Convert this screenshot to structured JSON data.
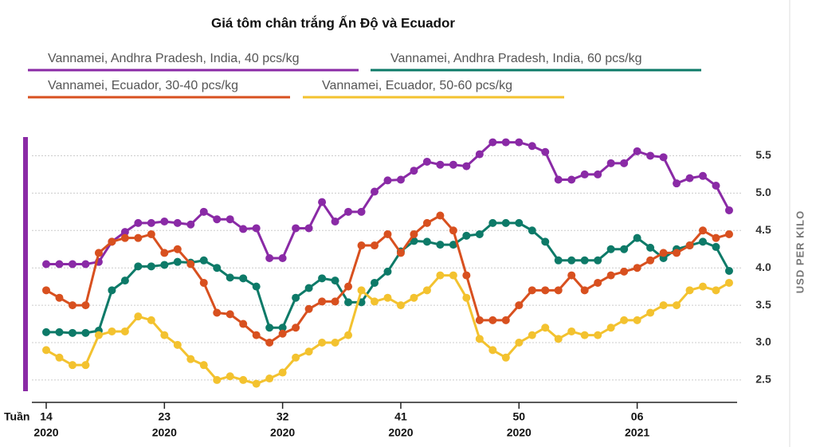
{
  "chart_data": {
    "type": "line",
    "title": "Giá tôm chân trắng Ấn Độ và Ecuador",
    "xlabel": "Tuần",
    "ylabel": "USD PER KILO",
    "categories": [
      "14",
      null,
      null,
      null,
      null,
      null,
      null,
      null,
      null,
      "23",
      null,
      null,
      null,
      null,
      null,
      null,
      null,
      null,
      "32",
      null,
      null,
      null,
      null,
      null,
      null,
      null,
      null,
      "41",
      null,
      null,
      null,
      null,
      null,
      null,
      null,
      null,
      "50",
      null,
      null,
      null,
      null,
      null,
      null,
      null,
      null,
      "06",
      null,
      null,
      null,
      null,
      null,
      null,
      null
    ],
    "category_years": [
      "2020",
      null,
      null,
      null,
      null,
      null,
      null,
      null,
      null,
      "2020",
      null,
      null,
      null,
      null,
      null,
      null,
      null,
      null,
      "2020",
      null,
      null,
      null,
      null,
      null,
      null,
      null,
      null,
      "2020",
      null,
      null,
      null,
      null,
      null,
      null,
      null,
      null,
      "2020",
      null,
      null,
      null,
      null,
      null,
      null,
      null,
      null,
      "2021",
      null,
      null,
      null,
      null,
      null,
      null,
      null
    ],
    "series": [
      {
        "name": "Vannamei, Andhra Pradesh, India, 40 pcs/kg",
        "color": "#8a2aa6",
        "values": [
          4.05,
          4.05,
          4.05,
          4.05,
          4.08,
          4.35,
          4.48,
          4.6,
          4.6,
          4.62,
          4.6,
          4.58,
          4.75,
          4.65,
          4.65,
          4.52,
          4.53,
          4.13,
          4.13,
          4.53,
          4.53,
          4.88,
          4.62,
          4.75,
          4.75,
          5.02,
          5.17,
          5.18,
          5.3,
          5.42,
          5.38,
          5.38,
          5.36,
          5.52,
          5.68,
          5.68,
          5.68,
          5.63,
          5.55,
          5.18,
          5.18,
          5.25,
          5.25,
          5.4,
          5.4,
          5.56,
          5.5,
          5.48,
          5.13,
          5.2,
          5.23,
          5.1,
          4.77
        ]
      },
      {
        "name": "Vannamei, Andhra Pradesh, India, 60 pcs/kg",
        "color": "#0d7a68",
        "values": [
          3.14,
          3.14,
          3.13,
          3.13,
          3.16,
          3.7,
          3.83,
          4.02,
          4.02,
          4.04,
          4.08,
          4.07,
          4.1,
          4.0,
          3.87,
          3.86,
          3.75,
          3.2,
          3.2,
          3.6,
          3.73,
          3.86,
          3.83,
          3.54,
          3.54,
          3.8,
          3.95,
          4.22,
          4.36,
          4.35,
          4.31,
          4.31,
          4.43,
          4.45,
          4.6,
          4.6,
          4.6,
          4.5,
          4.35,
          4.1,
          4.1,
          4.1,
          4.1,
          4.25,
          4.25,
          4.4,
          4.27,
          4.13,
          4.25,
          4.3,
          4.35,
          4.28,
          3.96
        ]
      },
      {
        "name": "Vannamei, Ecuador, 30-40 pcs/kg",
        "color": "#d8501f",
        "values": [
          3.7,
          3.6,
          3.5,
          3.5,
          4.2,
          4.35,
          4.4,
          4.4,
          4.45,
          4.2,
          4.25,
          4.05,
          3.8,
          3.4,
          3.38,
          3.25,
          3.1,
          3.0,
          3.12,
          3.2,
          3.45,
          3.55,
          3.55,
          3.75,
          4.3,
          4.3,
          4.45,
          4.2,
          4.45,
          4.6,
          4.7,
          4.5,
          3.9,
          3.3,
          3.3,
          3.3,
          3.5,
          3.7,
          3.7,
          3.7,
          3.9,
          3.7,
          3.8,
          3.9,
          3.95,
          4.0,
          4.1,
          4.2,
          4.2,
          4.3,
          4.5,
          4.4,
          4.45
        ]
      },
      {
        "name": "Vannamei, Ecuador, 50-60 pcs/kg",
        "color": "#f3c22f",
        "values": [
          2.9,
          2.8,
          2.7,
          2.7,
          3.1,
          3.15,
          3.15,
          3.35,
          3.3,
          3.1,
          2.97,
          2.78,
          2.7,
          2.5,
          2.55,
          2.5,
          2.45,
          2.52,
          2.6,
          2.8,
          2.88,
          3.0,
          3.0,
          3.1,
          3.7,
          3.55,
          3.6,
          3.5,
          3.6,
          3.7,
          3.9,
          3.9,
          3.6,
          3.05,
          2.9,
          2.8,
          3.0,
          3.1,
          3.2,
          3.05,
          3.15,
          3.1,
          3.1,
          3.2,
          3.3,
          3.3,
          3.4,
          3.5,
          3.5,
          3.7,
          3.75,
          3.7,
          3.8
        ]
      }
    ],
    "ylim": [
      2.35,
      5.75
    ],
    "yticks": [
      2.5,
      {
        "value": 3,
        "label": "3.0"
      },
      3.5,
      {
        "value": 4,
        "label": "4.0"
      },
      4.5,
      {
        "value": 5,
        "label": "5.0"
      },
      5.5
    ],
    "grid": true
  }
}
